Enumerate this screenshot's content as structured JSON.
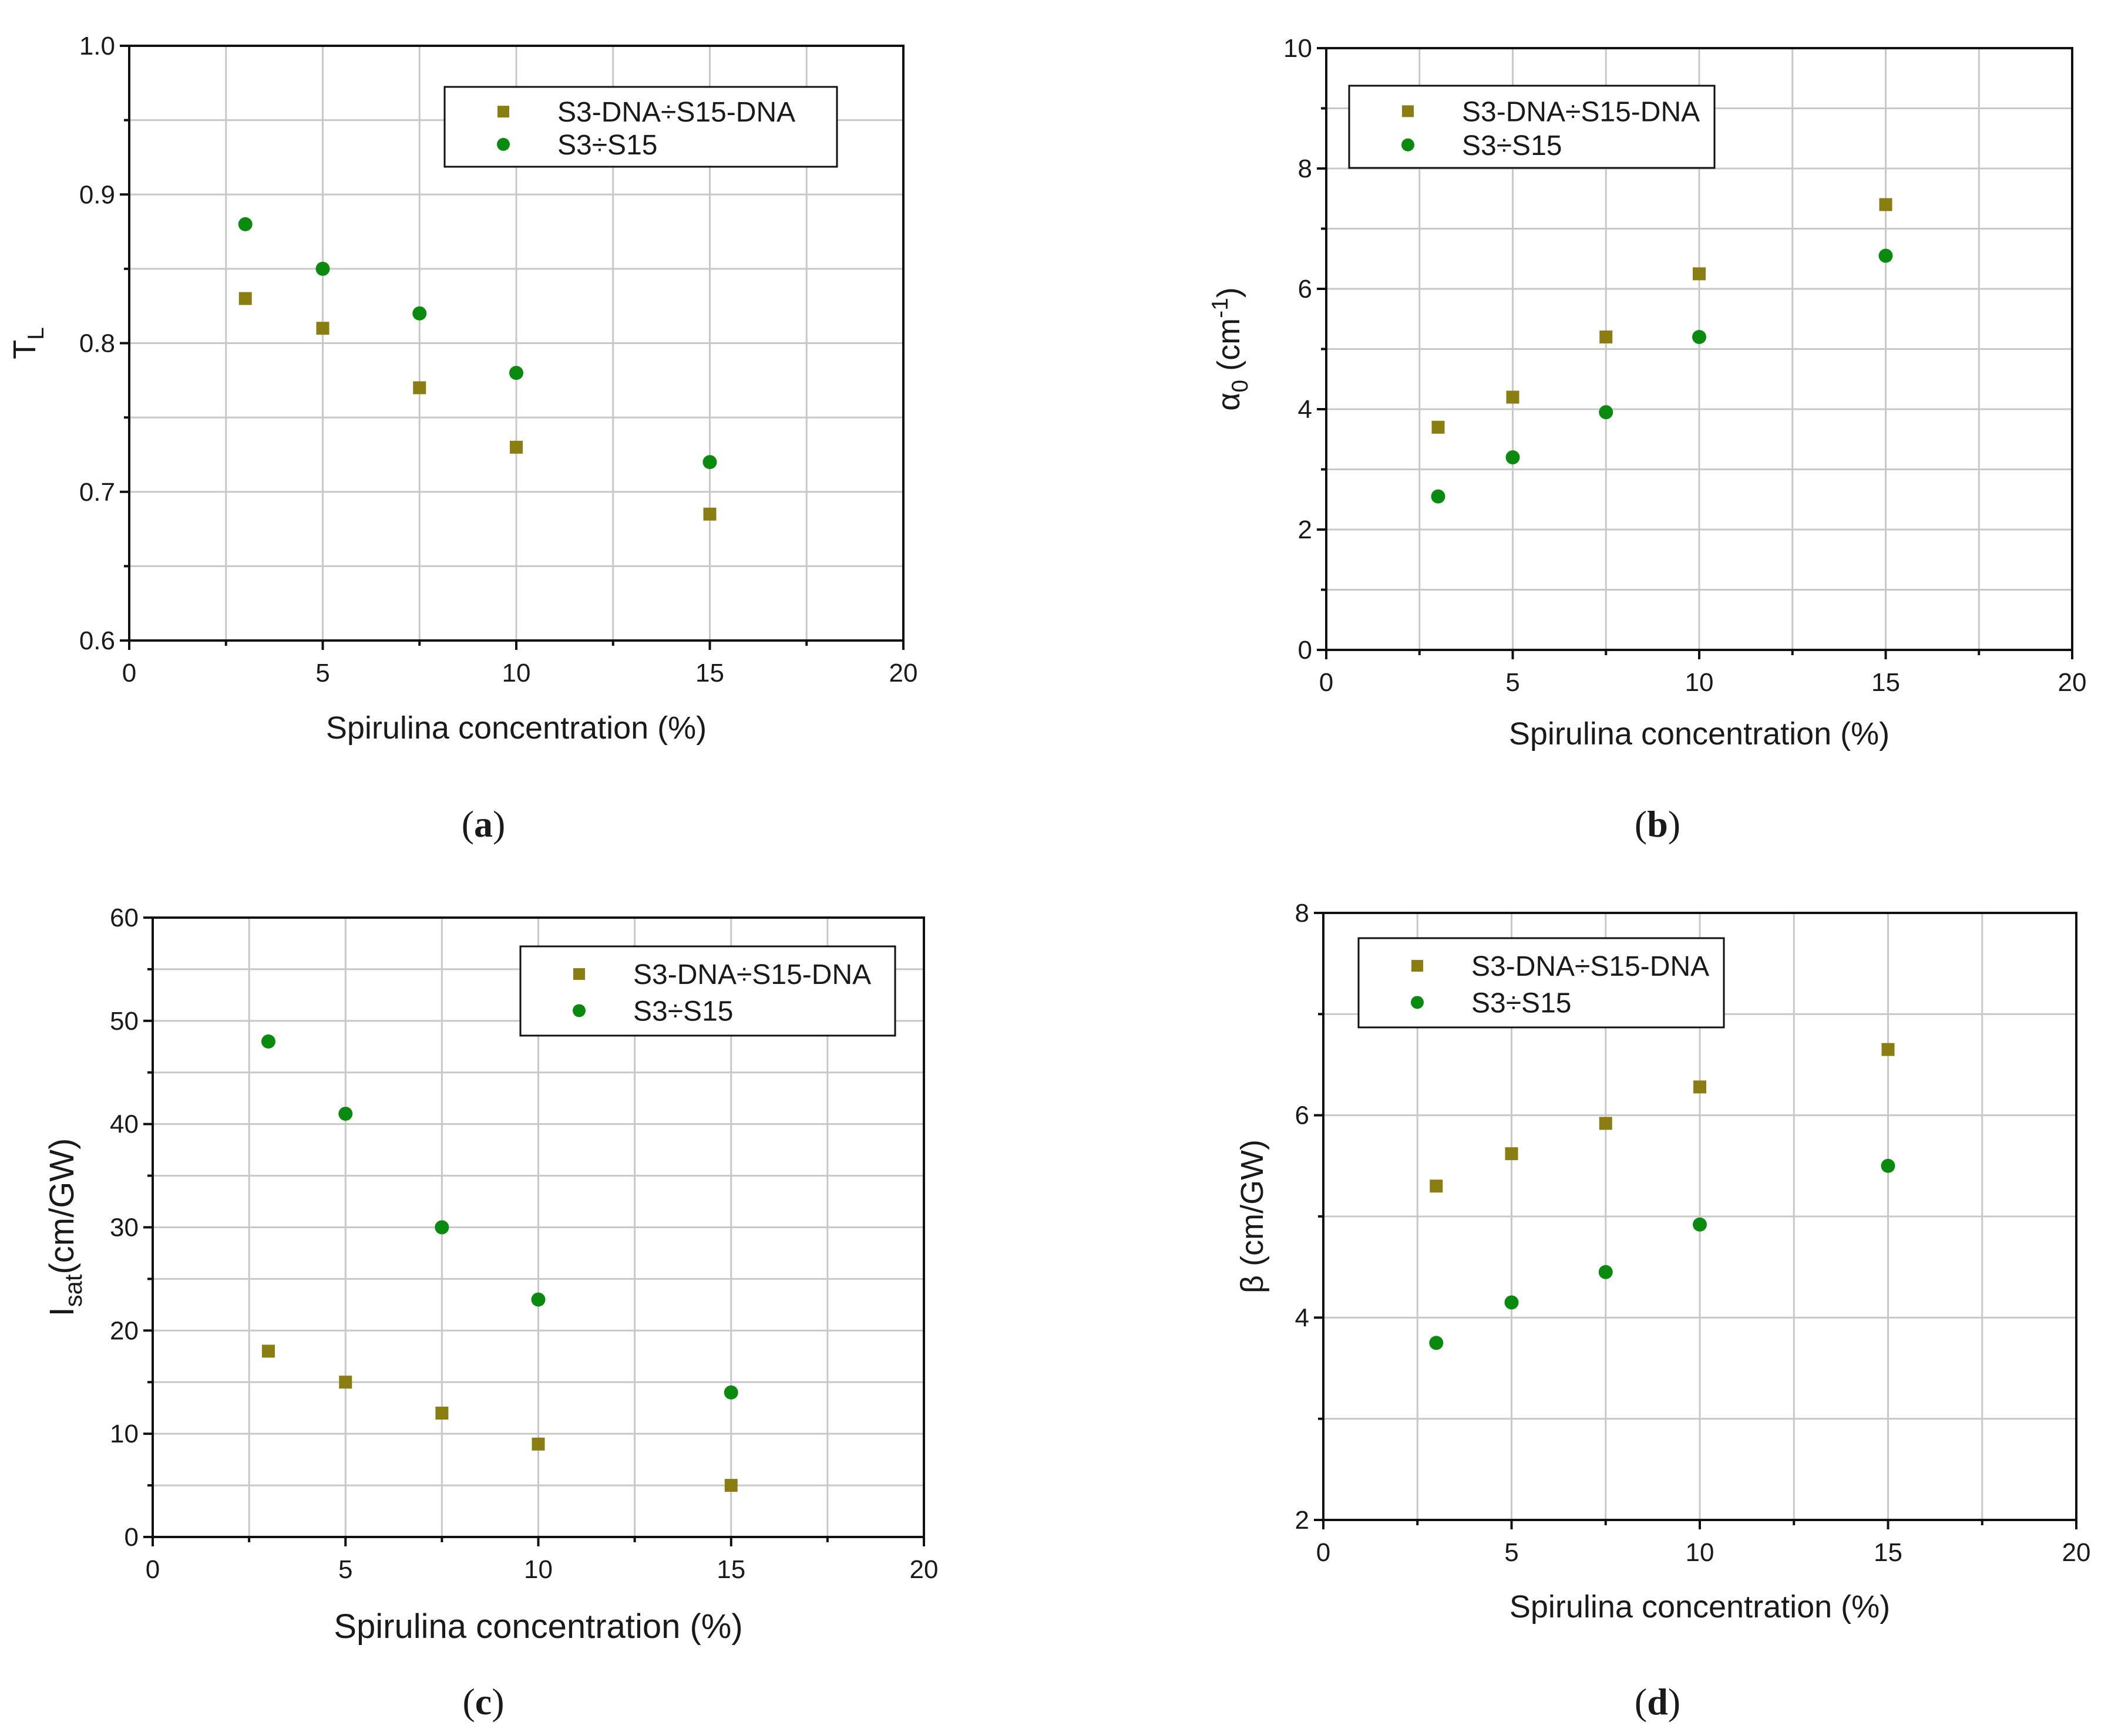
{
  "chart_data": [
    {
      "type": "scatter",
      "panel": "a",
      "caption_letter": "a",
      "ylabel_main": "T",
      "ylabel_sub": "L",
      "xlabel": "Spirulina concentration (%)",
      "xlim": [
        0,
        20
      ],
      "ylim": [
        0.6,
        1.0
      ],
      "xticks": [
        0,
        5,
        10,
        15,
        20
      ],
      "yticks": [
        0.6,
        0.7,
        0.8,
        0.9,
        1.0
      ],
      "ytick_labels": [
        "0.6",
        "0.7",
        "0.8",
        "0.9",
        "1.0"
      ],
      "grid": true,
      "legend_position": "top-right",
      "series": [
        {
          "name": "S3-DNA÷S15-DNA",
          "marker": "square",
          "color": "#8a7d12",
          "x": [
            3,
            5,
            7.5,
            10,
            15
          ],
          "y": [
            0.83,
            0.81,
            0.77,
            0.73,
            0.685
          ]
        },
        {
          "name": "S3÷S15",
          "marker": "circle",
          "color": "#0b8a10",
          "x": [
            3,
            5,
            7.5,
            10,
            15
          ],
          "y": [
            0.88,
            0.85,
            0.82,
            0.78,
            0.72
          ]
        }
      ]
    },
    {
      "type": "scatter",
      "panel": "b",
      "caption_letter": "b",
      "ylabel_main": "α",
      "ylabel_sub": "0",
      "ylabel_rest": " (cm",
      "ylabel_sup": "-1",
      "ylabel_end": ")",
      "xlabel": "Spirulina concentration (%)",
      "xlim": [
        0,
        20
      ],
      "ylim": [
        0,
        10
      ],
      "xticks": [
        0,
        5,
        10,
        15,
        20
      ],
      "yticks": [
        0,
        2,
        4,
        6,
        8,
        10
      ],
      "ytick_labels": [
        "0",
        "2",
        "4",
        "6",
        "8",
        "10"
      ],
      "grid": true,
      "legend_position": "top-left",
      "series": [
        {
          "name": "S3-DNA÷S15-DNA",
          "marker": "square",
          "color": "#8a7d12",
          "x": [
            3,
            5,
            7.5,
            10,
            15
          ],
          "y": [
            3.7,
            4.2,
            5.2,
            6.25,
            7.4
          ]
        },
        {
          "name": "S3÷S15",
          "marker": "circle",
          "color": "#0b8a10",
          "x": [
            3,
            5,
            7.5,
            10,
            15
          ],
          "y": [
            2.55,
            3.2,
            3.95,
            5.2,
            6.55
          ]
        }
      ]
    },
    {
      "type": "scatter",
      "panel": "c",
      "caption_letter": "c",
      "ylabel_main": "I",
      "ylabel_sub": "sat",
      "ylabel_rest": "(cm/GW)",
      "xlabel": "Spirulina concentration (%)",
      "xlim": [
        0,
        20
      ],
      "ylim": [
        0,
        60
      ],
      "xticks": [
        0,
        5,
        10,
        15,
        20
      ],
      "yticks": [
        0,
        10,
        20,
        30,
        40,
        50,
        60
      ],
      "ytick_labels": [
        "0",
        "10",
        "20",
        "30",
        "40",
        "50",
        "60"
      ],
      "grid": true,
      "legend_position": "top-right",
      "series": [
        {
          "name": "S3-DNA÷S15-DNA",
          "marker": "square",
          "color": "#8a7d12",
          "x": [
            3,
            5,
            7.5,
            10,
            15
          ],
          "y": [
            18,
            15,
            12,
            9,
            5
          ]
        },
        {
          "name": "S3÷S15",
          "marker": "circle",
          "color": "#0b8a10",
          "x": [
            3,
            5,
            7.5,
            10,
            15
          ],
          "y": [
            48,
            41,
            30,
            23,
            14
          ]
        }
      ]
    },
    {
      "type": "scatter",
      "panel": "d",
      "caption_letter": "d",
      "ylabel_main": "β (cm/GW)",
      "xlabel": "Spirulina concentration (%)",
      "xlim": [
        0,
        20
      ],
      "ylim": [
        2,
        8
      ],
      "xticks": [
        0,
        5,
        10,
        15,
        20
      ],
      "yticks": [
        2,
        4,
        6,
        8
      ],
      "ytick_labels": [
        "2",
        "4",
        "6",
        "8"
      ],
      "grid": true,
      "legend_position": "top-left",
      "series": [
        {
          "name": "S3-DNA÷S15-DNA",
          "marker": "square",
          "color": "#8a7d12",
          "x": [
            3,
            5,
            7.5,
            10,
            15
          ],
          "y": [
            5.3,
            5.62,
            5.92,
            6.28,
            6.65
          ]
        },
        {
          "name": "S3÷S15",
          "marker": "circle",
          "color": "#0b8a10",
          "x": [
            3,
            5,
            7.5,
            10,
            15
          ],
          "y": [
            3.75,
            4.15,
            4.45,
            4.92,
            5.5
          ]
        }
      ]
    }
  ]
}
